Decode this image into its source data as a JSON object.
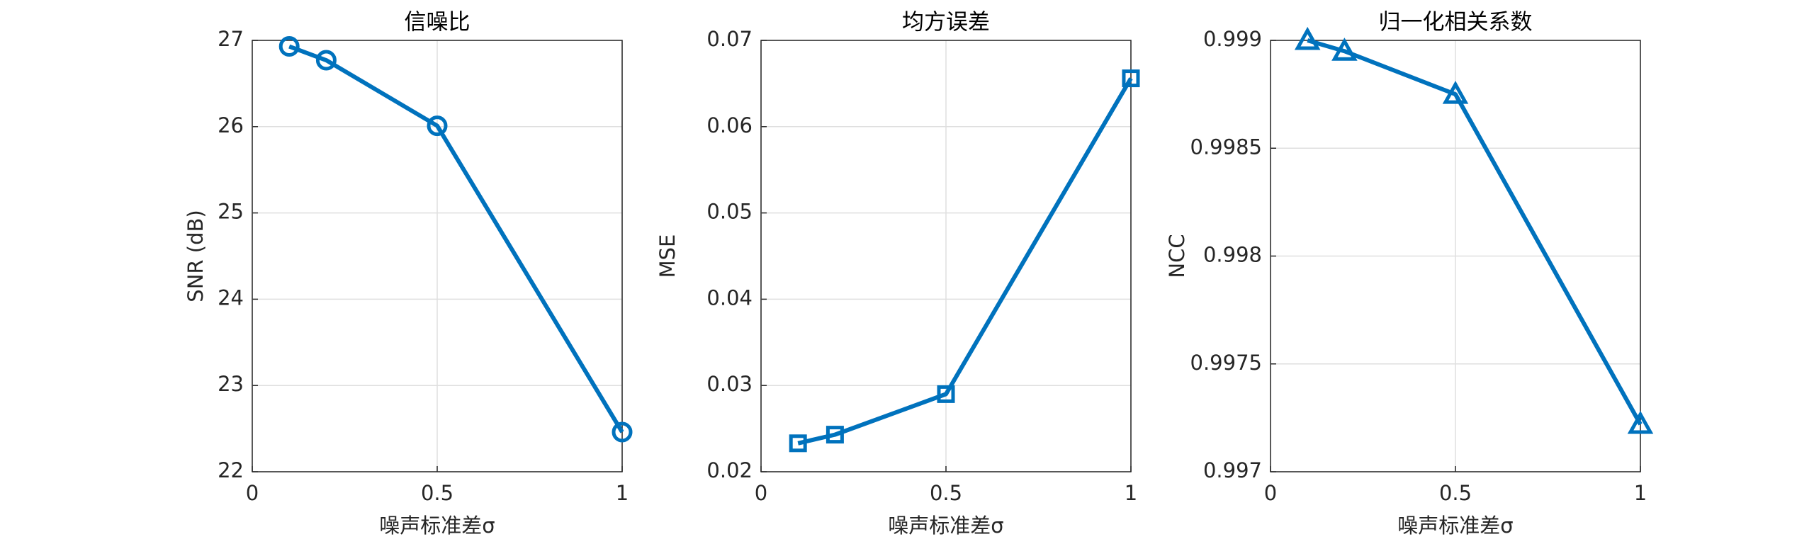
{
  "chart_data": [
    {
      "type": "line",
      "title": "信噪比",
      "xlabel": "噪声标准差σ",
      "ylabel": "SNR (dB)",
      "x": [
        0.1,
        0.2,
        0.5,
        1
      ],
      "values": [
        26.93,
        26.77,
        26.01,
        22.46
      ],
      "color": "#0072bd",
      "marker": "circle",
      "xlim": [
        0,
        1
      ],
      "xticks": [
        0,
        0.5,
        1
      ],
      "ylim": [
        22,
        27
      ],
      "yticks": [
        22,
        23,
        24,
        25,
        26,
        27
      ],
      "grid": true
    },
    {
      "type": "line",
      "title": "均方误差",
      "xlabel": "噪声标准差σ",
      "ylabel": "MSE",
      "x": [
        0.1,
        0.2,
        0.5,
        1
      ],
      "values": [
        0.0233,
        0.0243,
        0.029,
        0.0656
      ],
      "color": "#0072bd",
      "marker": "square",
      "xlim": [
        0,
        1
      ],
      "xticks": [
        0,
        0.5,
        1
      ],
      "ylim": [
        0.02,
        0.07
      ],
      "yticks": [
        0.02,
        0.03,
        0.04,
        0.05,
        0.06,
        0.07
      ],
      "grid": true
    },
    {
      "type": "line",
      "title": "归一化相关系数",
      "xlabel": "噪声标准差σ",
      "ylabel": "NCC",
      "x": [
        0.1,
        0.2,
        0.5,
        1
      ],
      "values": [
        0.999,
        0.99895,
        0.99875,
        0.99722
      ],
      "color": "#0072bd",
      "marker": "triangle",
      "xlim": [
        0,
        1
      ],
      "xticks": [
        0,
        0.5,
        1
      ],
      "ylim": [
        0.997,
        0.999
      ],
      "yticks": [
        0.997,
        0.9975,
        0.998,
        0.9985,
        0.999
      ],
      "grid": true
    }
  ]
}
